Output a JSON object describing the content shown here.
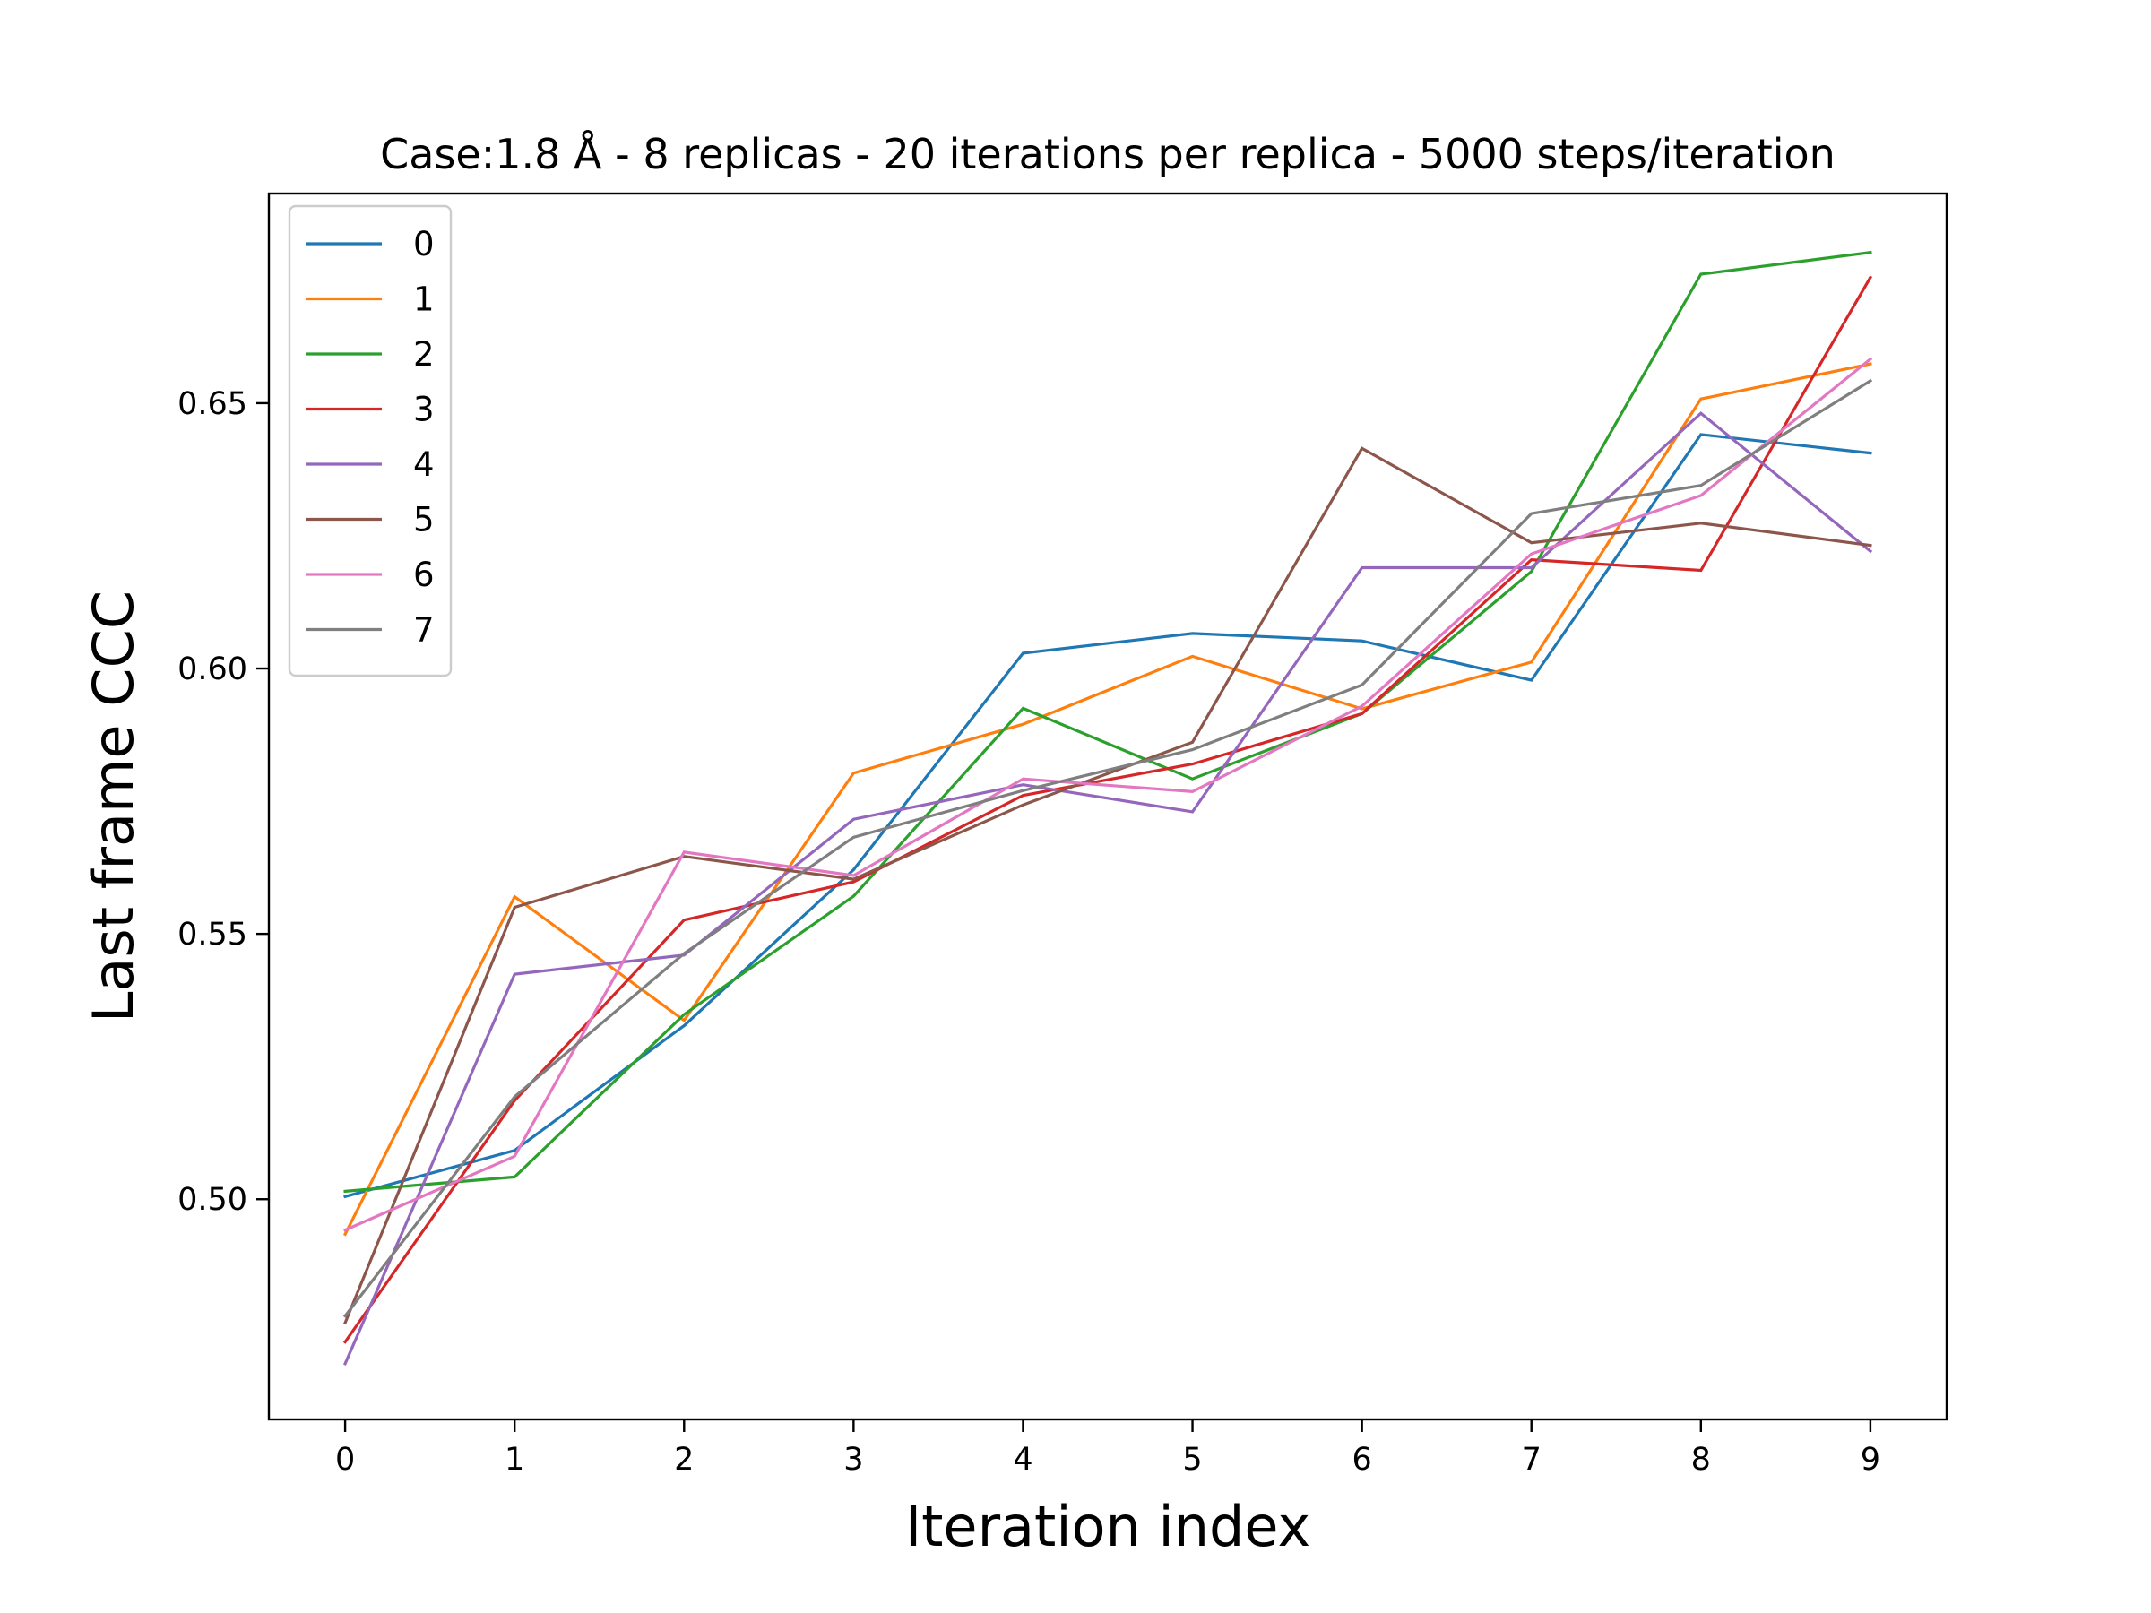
{
  "chart_data": {
    "type": "line",
    "title": "Case:1.8 Å - 8 replicas - 20 iterations per replica - 5000 steps/iteration",
    "xlabel": "Iteration index",
    "ylabel": "Last frame CCC",
    "xlim": [
      -0.45,
      9.45
    ],
    "ylim": [
      0.4585,
      0.6895
    ],
    "xticks": [
      0,
      1,
      2,
      3,
      4,
      5,
      6,
      7,
      8,
      9
    ],
    "xtick_labels": [
      "0",
      "1",
      "2",
      "3",
      "4",
      "5",
      "6",
      "7",
      "8",
      "9"
    ],
    "yticks": [
      0.5,
      0.55,
      0.6,
      0.65
    ],
    "ytick_labels": [
      "0.50",
      "0.55",
      "0.60",
      "0.65"
    ],
    "grid": false,
    "legend_position": "top-left",
    "x": [
      0,
      1,
      2,
      3,
      4,
      5,
      6,
      7,
      8,
      9
    ],
    "series": [
      {
        "name": "0",
        "color": "#1f77b4",
        "values": [
          0.5005,
          0.5092,
          0.5327,
          0.5621,
          0.6029,
          0.6066,
          0.6052,
          0.5978,
          0.6441,
          0.6406
        ]
      },
      {
        "name": "1",
        "color": "#ff7f0e",
        "values": [
          0.4934,
          0.557,
          0.5337,
          0.5803,
          0.5895,
          0.6023,
          0.5924,
          0.6012,
          0.6508,
          0.6574
        ]
      },
      {
        "name": "2",
        "color": "#2ca02c",
        "values": [
          0.5015,
          0.5042,
          0.5348,
          0.5571,
          0.5925,
          0.5792,
          0.5915,
          0.6183,
          0.6743,
          0.6784
        ]
      },
      {
        "name": "3",
        "color": "#d62728",
        "values": [
          0.4731,
          0.5186,
          0.5526,
          0.5598,
          0.5761,
          0.582,
          0.5915,
          0.6205,
          0.6185,
          0.6737
        ]
      },
      {
        "name": "4",
        "color": "#9467bd",
        "values": [
          0.469,
          0.5424,
          0.546,
          0.5716,
          0.5781,
          0.573,
          0.619,
          0.619,
          0.6481,
          0.6221
        ]
      },
      {
        "name": "5",
        "color": "#8c564b",
        "values": [
          0.4767,
          0.555,
          0.5646,
          0.5603,
          0.5743,
          0.5861,
          0.6415,
          0.6237,
          0.6274,
          0.6232
        ]
      },
      {
        "name": "6",
        "color": "#e377c2",
        "values": [
          0.4942,
          0.5081,
          0.5654,
          0.561,
          0.5792,
          0.5768,
          0.5929,
          0.6216,
          0.6326,
          0.6583
        ]
      },
      {
        "name": "7",
        "color": "#7f7f7f",
        "values": [
          0.478,
          0.5193,
          0.5463,
          0.5682,
          0.577,
          0.5847,
          0.5969,
          0.6292,
          0.6345,
          0.6542
        ]
      }
    ]
  }
}
